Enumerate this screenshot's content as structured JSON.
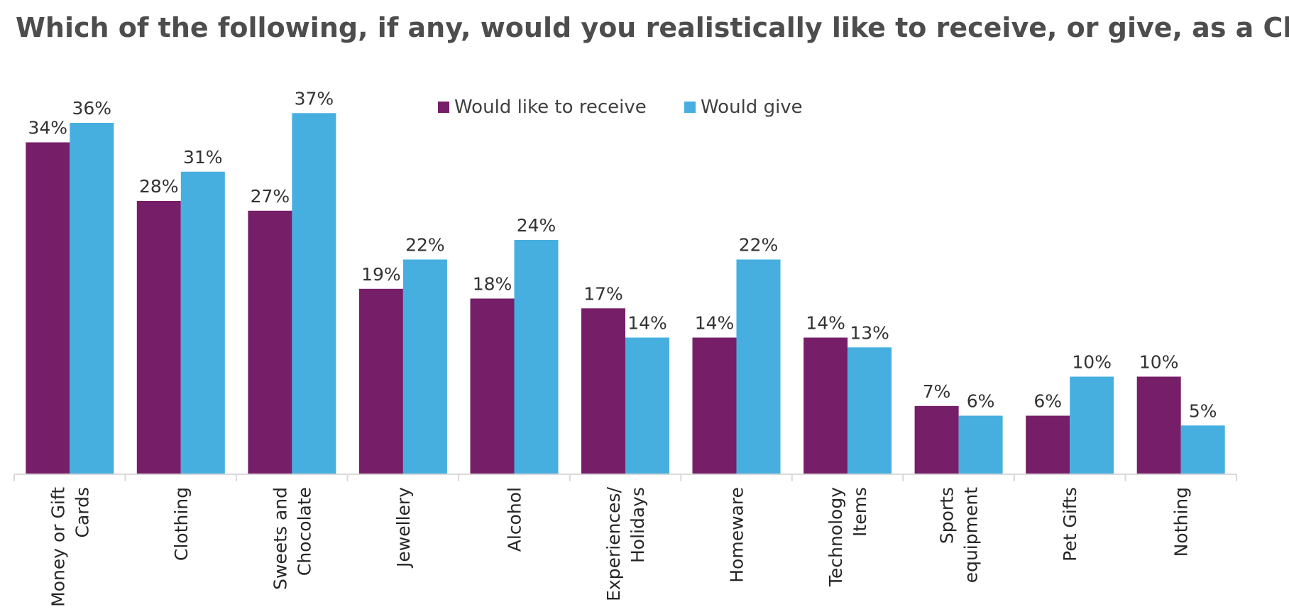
{
  "chart_data": {
    "type": "bar",
    "title": "Which of the following, if any, would you realistically like to receive, or give, as a Christmas gift?",
    "xlabel": "",
    "ylabel": "",
    "ylim": [
      0,
      40
    ],
    "grid": false,
    "legend_position": "top-center",
    "categories": [
      [
        "Money or Gift",
        "Cards"
      ],
      [
        "Clothing"
      ],
      [
        "Sweets and",
        "Chocolate"
      ],
      [
        "Jewellery"
      ],
      [
        "Alcohol"
      ],
      [
        "Experiences/",
        "Holidays"
      ],
      [
        "Homeware"
      ],
      [
        "Technology",
        "Items"
      ],
      [
        "Sports",
        "equipment"
      ],
      [
        "Pet Gifts"
      ],
      [
        "Nothing"
      ]
    ],
    "series": [
      {
        "name": "Would like to receive",
        "color": "#761F68",
        "values": [
          34,
          28,
          27,
          19,
          18,
          17,
          14,
          14,
          7,
          6,
          10
        ],
        "labels": [
          "34%",
          "28%",
          "27%",
          "19%",
          "18%",
          "17%",
          "14%",
          "14%",
          "7%",
          "6%",
          "10%"
        ]
      },
      {
        "name": "Would give",
        "color": "#46AFE0",
        "values": [
          36,
          31,
          37,
          22,
          24,
          14,
          22,
          13,
          6,
          10,
          5
        ],
        "labels": [
          "36%",
          "31%",
          "37%",
          "22%",
          "24%",
          "14%",
          "22%",
          "13%",
          "6%",
          "10%",
          "5%"
        ]
      }
    ]
  }
}
